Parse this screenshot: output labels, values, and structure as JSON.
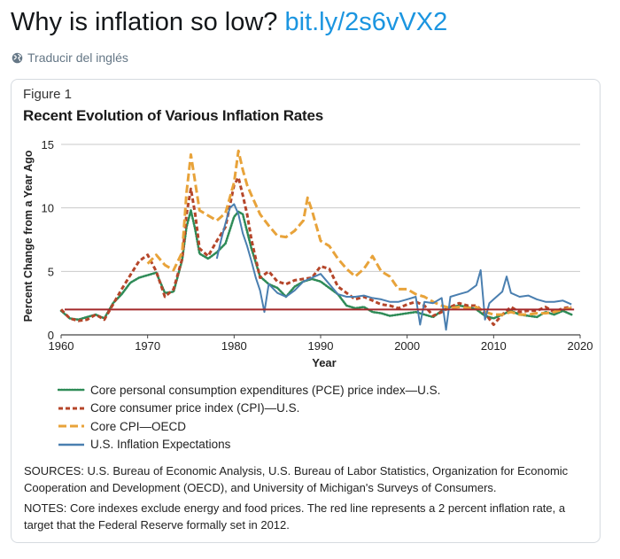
{
  "tweet": {
    "text": "Why is inflation so low?",
    "link": "bit.ly/2s6vVX2",
    "translate_label": "Traducir del inglés",
    "globe_icon": "globe-icon"
  },
  "figure": {
    "label": "Figure 1",
    "title": "Recent Evolution of Various Inflation Rates",
    "sources": "SOURCES: U.S. Bureau of Economic Analysis, U.S. Bureau of Labor Statistics, Organization for Economic Cooperation and Development (OECD), and University of Michigan's Surveys of Consumers.",
    "notes": "NOTES: Core indexes exclude energy and food prices. The red line represents a 2 percent inflation rate, a target that the Federal Reserve formally set in 2012."
  },
  "chart_data": {
    "type": "line",
    "title": "Recent Evolution of Various Inflation Rates",
    "xlabel": "Year",
    "ylabel": "Percent Change from a Year Ago",
    "xlim": [
      1960,
      2020
    ],
    "ylim": [
      0,
      15
    ],
    "xticks": [
      1960,
      1970,
      1980,
      1990,
      2000,
      2010,
      2020
    ],
    "yticks": [
      0,
      5,
      10,
      15
    ],
    "grid": "horizontal",
    "legend_position": "bottom-left",
    "reference_line": {
      "y": 2,
      "color": "#a3282a"
    },
    "series": [
      {
        "name": "Core personal consumption expenditures (PCE) price index—U.S.",
        "color": "#2e8b57",
        "style": "dotted",
        "x": [
          1960,
          1961,
          1962,
          1963,
          1964,
          1965,
          1966,
          1967,
          1968,
          1969,
          1970,
          1971,
          1972,
          1973,
          1974,
          1974.5,
          1975,
          1975.5,
          1976,
          1977,
          1978,
          1979,
          1980,
          1980.5,
          1981,
          1982,
          1983,
          1984,
          1985,
          1986,
          1987,
          1988,
          1989,
          1990,
          1991,
          1992,
          1993,
          1994,
          1995,
          1996,
          1997,
          1998,
          1999,
          2000,
          2001,
          2002,
          2003,
          2004,
          2005,
          2006,
          2007,
          2008,
          2009,
          2010,
          2011,
          2012,
          2013,
          2014,
          2015,
          2016,
          2017,
          2018,
          2019
        ],
        "y": [
          1.9,
          1.3,
          1.2,
          1.4,
          1.6,
          1.3,
          2.5,
          3.2,
          4.1,
          4.5,
          4.7,
          4.9,
          3.3,
          3.4,
          5.9,
          8.5,
          9.8,
          8.3,
          6.4,
          6.0,
          6.5,
          7.2,
          9.3,
          9.7,
          9.5,
          6.8,
          4.6,
          4.0,
          3.7,
          3.0,
          3.8,
          4.2,
          4.4,
          4.2,
          3.7,
          3.2,
          2.3,
          2.1,
          2.2,
          1.8,
          1.7,
          1.5,
          1.6,
          1.7,
          1.8,
          1.6,
          1.4,
          1.9,
          2.2,
          2.3,
          2.2,
          2.0,
          1.5,
          1.3,
          1.6,
          1.9,
          1.6,
          1.5,
          1.4,
          1.8,
          1.6,
          1.9,
          1.6
        ]
      },
      {
        "name": "Core consumer price index (CPI)—U.S.",
        "color": "#b5462a",
        "style": "dashed",
        "x": [
          1960,
          1961,
          1962,
          1963,
          1964,
          1965,
          1966,
          1967,
          1968,
          1969,
          1970,
          1971,
          1972,
          1973,
          1974,
          1974.5,
          1975,
          1975.5,
          1976,
          1977,
          1978,
          1979,
          1980,
          1980.5,
          1981,
          1981.5,
          1982,
          1983,
          1984,
          1985,
          1986,
          1987,
          1988,
          1989,
          1990,
          1991,
          1992,
          1993,
          1994,
          1995,
          1996,
          1997,
          1998,
          1999,
          2000,
          2001,
          2002,
          2003,
          2004,
          2005,
          2006,
          2007,
          2008,
          2009,
          2010,
          2011,
          2012,
          2013,
          2014,
          2015,
          2016,
          2017,
          2018,
          2019
        ],
        "y": [
          2.0,
          1.3,
          1.1,
          1.2,
          1.6,
          1.2,
          2.4,
          3.6,
          4.7,
          5.8,
          6.3,
          5.0,
          3.0,
          3.6,
          6.0,
          9.5,
          11.5,
          9.5,
          6.8,
          6.2,
          7.4,
          8.5,
          11.8,
          12.4,
          11.0,
          9.5,
          7.5,
          4.5,
          5.0,
          4.2,
          4.0,
          4.3,
          4.4,
          4.5,
          5.4,
          5.2,
          3.8,
          3.3,
          2.8,
          3.0,
          2.7,
          2.4,
          2.3,
          2.1,
          2.4,
          2.6,
          2.3,
          1.5,
          1.8,
          2.2,
          2.5,
          2.3,
          2.3,
          1.7,
          0.8,
          1.6,
          2.2,
          1.8,
          1.9,
          1.9,
          2.2,
          1.8,
          2.1,
          2.2
        ]
      },
      {
        "name": "Core CPI—OECD",
        "color": "#e8a33a",
        "style": "long-dash",
        "x": [
          1970,
          1971,
          1972,
          1973,
          1974,
          1974.5,
          1975,
          1975.5,
          1976,
          1977,
          1978,
          1979,
          1980,
          1980.5,
          1981,
          1981.5,
          1982,
          1983,
          1984,
          1985,
          1986,
          1987,
          1988,
          1988.5,
          1989,
          1990,
          1991,
          1992,
          1993,
          1994,
          1995,
          1996,
          1997,
          1998,
          1999,
          2000,
          2001,
          2002,
          2003,
          2004,
          2005,
          2006,
          2007,
          2008,
          2009,
          2010,
          2011,
          2012,
          2013,
          2014,
          2015,
          2016,
          2017,
          2018,
          2019
        ],
        "y": [
          5.6,
          6.3,
          5.5,
          5.1,
          6.5,
          11.2,
          14.2,
          12.0,
          9.8,
          9.4,
          9.0,
          9.6,
          12.0,
          14.5,
          13.0,
          11.8,
          11.0,
          9.5,
          8.6,
          7.8,
          7.7,
          8.2,
          9.0,
          10.8,
          9.8,
          7.4,
          7.0,
          6.0,
          5.2,
          4.6,
          5.2,
          6.2,
          5.0,
          4.6,
          3.6,
          3.6,
          3.2,
          3.0,
          2.6,
          2.3,
          2.1,
          2.2,
          2.1,
          2.2,
          1.8,
          1.6,
          1.6,
          1.8,
          1.6,
          1.6,
          1.7,
          1.7,
          1.8,
          2.0,
          2.1
        ]
      },
      {
        "name": "U.S. Inflation Expectations",
        "color": "#4a7fb0",
        "style": "solid",
        "x": [
          1978,
          1978.5,
          1979,
          1979.5,
          1980,
          1980.5,
          1981,
          1981.5,
          1982,
          1982.5,
          1983,
          1983.5,
          1984,
          1985,
          1986,
          1987,
          1988,
          1989,
          1990,
          1991,
          1992,
          1993,
          1994,
          1995,
          1996,
          1997,
          1998,
          1999,
          2000,
          2001,
          2001.5,
          2002,
          2003,
          2004,
          2004.5,
          2005,
          2006,
          2007,
          2008,
          2008.5,
          2009,
          2009.5,
          2010,
          2011,
          2011.5,
          2012,
          2013,
          2014,
          2015,
          2016,
          2017,
          2018,
          2019
        ],
        "y": [
          6.0,
          7.5,
          8.8,
          10.0,
          10.3,
          9.5,
          8.0,
          7.0,
          5.8,
          4.5,
          3.5,
          1.8,
          4.0,
          3.3,
          3.0,
          3.5,
          4.2,
          4.5,
          4.8,
          4.0,
          3.2,
          3.0,
          3.0,
          3.1,
          2.9,
          2.8,
          2.6,
          2.6,
          2.8,
          3.0,
          0.8,
          2.6,
          2.5,
          2.9,
          0.4,
          3.0,
          3.2,
          3.4,
          3.9,
          5.1,
          1.2,
          2.5,
          2.8,
          3.4,
          4.6,
          3.3,
          3.0,
          3.1,
          2.8,
          2.6,
          2.6,
          2.7,
          2.4
        ]
      }
    ]
  }
}
